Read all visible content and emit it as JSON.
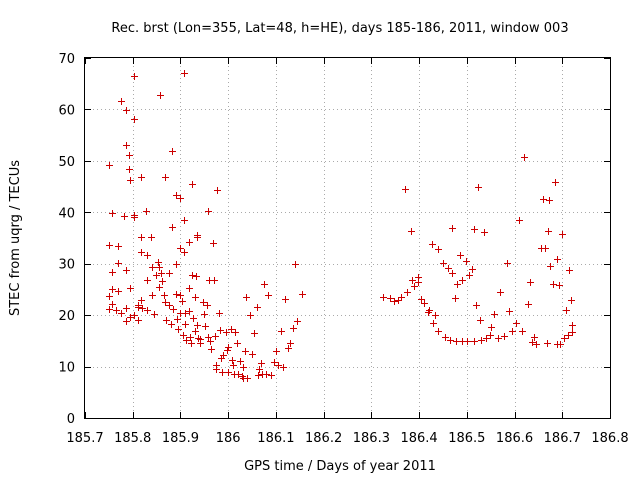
{
  "chart_data": {
    "type": "scatter",
    "title": "Rec. brst (Lon=355, Lat=48, h=HE), days 185-186, 2011, window 003",
    "xlabel": "GPS time / Days of year 2011",
    "ylabel": "STEC from uqrg / TECUs",
    "xlim": [
      185.7,
      186.8
    ],
    "ylim": [
      0,
      70
    ],
    "x_ticks": [
      185.7,
      185.8,
      185.9,
      186.0,
      186.1,
      186.2,
      186.3,
      186.4,
      186.5,
      186.6,
      186.7,
      186.8
    ],
    "x_tick_labels": [
      "185.7",
      "185.8",
      "185.9",
      "186",
      "186.1",
      "186.2",
      "186.3",
      "186.4",
      "186.5",
      "186.6",
      "186.7",
      "186.8"
    ],
    "y_ticks": [
      0,
      10,
      20,
      30,
      40,
      50,
      60,
      70
    ],
    "y_tick_labels": [
      "0",
      "10",
      "20",
      "30",
      "40",
      "50",
      "60",
      "70"
    ],
    "grid": true,
    "marker": "plus",
    "color": "#cc0000",
    "points": [
      [
        185.75,
        49.2
      ],
      [
        185.75,
        33.6
      ],
      [
        185.75,
        23.8
      ],
      [
        185.75,
        21.2
      ],
      [
        185.757,
        39.8
      ],
      [
        185.757,
        28.4
      ],
      [
        185.757,
        25.0
      ],
      [
        185.757,
        22.1
      ],
      [
        185.765,
        21.0
      ],
      [
        185.77,
        33.5
      ],
      [
        185.77,
        30.2
      ],
      [
        185.77,
        24.6
      ],
      [
        185.775,
        61.6
      ],
      [
        185.775,
        20.4
      ],
      [
        185.782,
        39.2
      ],
      [
        185.785,
        59.9
      ],
      [
        185.785,
        53.1
      ],
      [
        185.785,
        28.7
      ],
      [
        185.785,
        21.3
      ],
      [
        185.785,
        18.8
      ],
      [
        185.792,
        51.2
      ],
      [
        185.792,
        48.5
      ],
      [
        185.795,
        46.2
      ],
      [
        185.795,
        25.2
      ],
      [
        185.795,
        19.6
      ],
      [
        185.803,
        66.5
      ],
      [
        185.803,
        58.2
      ],
      [
        185.803,
        39.4
      ],
      [
        185.803,
        39.0
      ],
      [
        185.803,
        20.0
      ],
      [
        185.81,
        22.0
      ],
      [
        185.81,
        21.5
      ],
      [
        185.81,
        19.1
      ],
      [
        185.817,
        46.9
      ],
      [
        185.817,
        35.1
      ],
      [
        185.817,
        32.3
      ],
      [
        185.817,
        23.0
      ],
      [
        185.82,
        21.4
      ],
      [
        185.828,
        40.2
      ],
      [
        185.83,
        31.7
      ],
      [
        185.83,
        26.8
      ],
      [
        185.83,
        21.0
      ],
      [
        185.838,
        35.1
      ],
      [
        185.84,
        29.4
      ],
      [
        185.84,
        23.9
      ],
      [
        185.845,
        20.2
      ],
      [
        185.848,
        27.8
      ],
      [
        185.852,
        30.4
      ],
      [
        185.855,
        29.4
      ],
      [
        185.855,
        25.5
      ],
      [
        185.857,
        62.9
      ],
      [
        185.86,
        28.2
      ],
      [
        185.862,
        26.7
      ],
      [
        185.865,
        24.0
      ],
      [
        185.868,
        46.9
      ],
      [
        185.868,
        22.6
      ],
      [
        185.87,
        19.0
      ],
      [
        185.875,
        21.9
      ],
      [
        185.877,
        28.1
      ],
      [
        185.88,
        18.3
      ],
      [
        185.882,
        51.9
      ],
      [
        185.882,
        37.2
      ],
      [
        185.885,
        21.2
      ],
      [
        185.89,
        43.3
      ],
      [
        185.89,
        29.9
      ],
      [
        185.89,
        24.1
      ],
      [
        185.893,
        19.2
      ],
      [
        185.895,
        17.4
      ],
      [
        185.898,
        42.8
      ],
      [
        185.898,
        33.1
      ],
      [
        185.9,
        24.0
      ],
      [
        185.9,
        20.4
      ],
      [
        185.903,
        22.7
      ],
      [
        185.905,
        16.1
      ],
      [
        185.907,
        67.1
      ],
      [
        185.907,
        38.5
      ],
      [
        185.907,
        32.2
      ],
      [
        185.91,
        20.5
      ],
      [
        185.91,
        18.3
      ],
      [
        185.912,
        15.2
      ],
      [
        185.917,
        34.3
      ],
      [
        185.917,
        25.2
      ],
      [
        185.917,
        20.9
      ],
      [
        185.92,
        15.8
      ],
      [
        185.922,
        14.6
      ],
      [
        185.925,
        45.5
      ],
      [
        185.925,
        27.9
      ],
      [
        185.927,
        19.4
      ],
      [
        185.93,
        23.5
      ],
      [
        185.93,
        17.0
      ],
      [
        185.933,
        27.6
      ],
      [
        185.935,
        35.6
      ],
      [
        185.935,
        35.2
      ],
      [
        185.935,
        18.0
      ],
      [
        185.937,
        15.5
      ],
      [
        185.94,
        15.3
      ],
      [
        185.94,
        14.5
      ],
      [
        185.948,
        22.5
      ],
      [
        185.95,
        20.2
      ],
      [
        185.952,
        17.8
      ],
      [
        185.955,
        22.0
      ],
      [
        185.957,
        15.7
      ],
      [
        185.958,
        40.3
      ],
      [
        185.96,
        26.8
      ],
      [
        185.962,
        15.0
      ],
      [
        185.965,
        13.5
      ],
      [
        185.968,
        34.0
      ],
      [
        185.97,
        26.8
      ],
      [
        185.972,
        16.0
      ],
      [
        185.975,
        10.3
      ],
      [
        185.975,
        9.6
      ],
      [
        185.977,
        44.3
      ],
      [
        185.98,
        20.5
      ],
      [
        185.982,
        17.2
      ],
      [
        185.985,
        11.6
      ],
      [
        185.988,
        8.9
      ],
      [
        185.99,
        12.2
      ],
      [
        185.995,
        16.8
      ],
      [
        185.998,
        13.2
      ],
      [
        186.0,
        9.0
      ],
      [
        186.0,
        13.8
      ],
      [
        186.005,
        17.3
      ],
      [
        186.008,
        11.3
      ],
      [
        186.01,
        10.4
      ],
      [
        186.012,
        8.5
      ],
      [
        186.015,
        16.8
      ],
      [
        186.018,
        14.5
      ],
      [
        186.02,
        8.5
      ],
      [
        186.025,
        11.0
      ],
      [
        186.028,
        8.2
      ],
      [
        186.03,
        10.0
      ],
      [
        186.03,
        7.8
      ],
      [
        186.035,
        13.0
      ],
      [
        186.038,
        23.6
      ],
      [
        186.04,
        7.7
      ],
      [
        186.045,
        20.0
      ],
      [
        186.05,
        12.5
      ],
      [
        186.055,
        16.5
      ],
      [
        186.06,
        21.6
      ],
      [
        186.063,
        8.4
      ],
      [
        186.065,
        9.6
      ],
      [
        186.068,
        10.7
      ],
      [
        186.07,
        8.6
      ],
      [
        186.075,
        26.0
      ],
      [
        186.08,
        8.5
      ],
      [
        186.083,
        24.0
      ],
      [
        186.09,
        8.3
      ],
      [
        186.095,
        10.8
      ],
      [
        186.1,
        13.0
      ],
      [
        186.105,
        10.4
      ],
      [
        186.11,
        17.0
      ],
      [
        186.115,
        10.0
      ],
      [
        186.12,
        23.1
      ],
      [
        186.125,
        13.7
      ],
      [
        186.13,
        14.5
      ],
      [
        186.135,
        17.5
      ],
      [
        186.14,
        30.0
      ],
      [
        186.145,
        18.8
      ],
      [
        186.155,
        24.1
      ],
      [
        186.325,
        23.6
      ],
      [
        186.34,
        23.4
      ],
      [
        186.348,
        22.8
      ],
      [
        186.355,
        23.0
      ],
      [
        186.363,
        23.5
      ],
      [
        186.37,
        44.6
      ],
      [
        186.375,
        24.5
      ],
      [
        186.383,
        36.4
      ],
      [
        186.385,
        26.9
      ],
      [
        186.39,
        25.6
      ],
      [
        186.398,
        27.4
      ],
      [
        186.398,
        26.5
      ],
      [
        186.405,
        23.2
      ],
      [
        186.41,
        22.3
      ],
      [
        186.418,
        20.6
      ],
      [
        186.42,
        21.0
      ],
      [
        186.428,
        33.9
      ],
      [
        186.43,
        18.4
      ],
      [
        186.433,
        20.0
      ],
      [
        186.44,
        32.8
      ],
      [
        186.44,
        17.0
      ],
      [
        186.45,
        30.2
      ],
      [
        186.455,
        15.8
      ],
      [
        186.46,
        29.1
      ],
      [
        186.465,
        15.1
      ],
      [
        186.468,
        28.1
      ],
      [
        186.47,
        37.0
      ],
      [
        186.475,
        23.4
      ],
      [
        186.478,
        15.0
      ],
      [
        186.48,
        26.0
      ],
      [
        186.485,
        31.6
      ],
      [
        186.49,
        26.8
      ],
      [
        186.49,
        15.0
      ],
      [
        186.498,
        30.6
      ],
      [
        186.5,
        15.0
      ],
      [
        186.505,
        27.9
      ],
      [
        186.51,
        29.0
      ],
      [
        186.515,
        15.0
      ],
      [
        186.515,
        36.7
      ],
      [
        186.52,
        22.0
      ],
      [
        186.523,
        44.9
      ],
      [
        186.527,
        19.0
      ],
      [
        186.53,
        15.1
      ],
      [
        186.535,
        36.1
      ],
      [
        186.54,
        15.6
      ],
      [
        186.548,
        16.1
      ],
      [
        186.55,
        17.6
      ],
      [
        186.558,
        20.3
      ],
      [
        186.565,
        15.6
      ],
      [
        186.57,
        24.5
      ],
      [
        186.578,
        16.0
      ],
      [
        186.585,
        30.2
      ],
      [
        186.588,
        20.8
      ],
      [
        186.595,
        17.0
      ],
      [
        186.603,
        18.4
      ],
      [
        186.61,
        38.5
      ],
      [
        186.615,
        16.9
      ],
      [
        186.62,
        50.8
      ],
      [
        186.628,
        22.1
      ],
      [
        186.633,
        26.4
      ],
      [
        186.64,
        15.7
      ],
      [
        186.645,
        14.4
      ],
      [
        186.655,
        33.1
      ],
      [
        186.66,
        42.5
      ],
      [
        186.663,
        33.0
      ],
      [
        186.67,
        36.4
      ],
      [
        186.672,
        42.4
      ],
      [
        186.675,
        29.5
      ],
      [
        186.68,
        26.0
      ],
      [
        186.685,
        45.8
      ],
      [
        186.69,
        30.9
      ],
      [
        186.693,
        25.9
      ],
      [
        186.695,
        14.3
      ],
      [
        186.7,
        35.7
      ],
      [
        186.703,
        15.5
      ],
      [
        186.707,
        21.0
      ],
      [
        186.713,
        16.1
      ],
      [
        186.715,
        28.8
      ],
      [
        186.718,
        23.0
      ],
      [
        186.72,
        18.0
      ],
      [
        186.72,
        16.7
      ],
      [
        186.637,
        14.8
      ],
      [
        186.668,
        14.5
      ],
      [
        186.69,
        14.4
      ]
    ]
  }
}
